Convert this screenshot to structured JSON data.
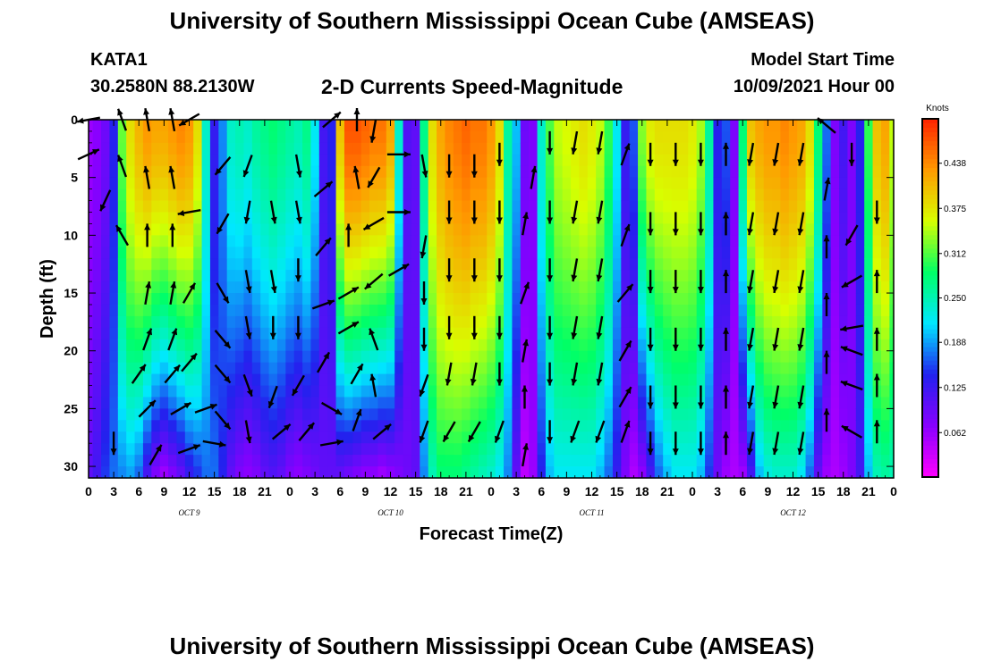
{
  "header": {
    "title_top": "University of Southern Mississippi Ocean Cube (AMSEAS)",
    "station": "KATA1",
    "coords": "30.2580N  88.2130W",
    "plot_title": "2-D Currents Speed-Magnitude",
    "model_start_label": "Model Start Time",
    "model_start_value": "10/09/2021 Hour 00"
  },
  "footer": {
    "title_bottom": "University of Southern Mississippi Ocean Cube (AMSEAS)"
  },
  "chart_data": {
    "type": "heatmap",
    "title": "2-D Currents Speed-Magnitude",
    "xlabel": "Forecast Time(Z)",
    "ylabel": "Depth (ft)",
    "xlim": [
      0,
      96
    ],
    "ylim": [
      31,
      0
    ],
    "x_tick_values": [
      0,
      3,
      6,
      9,
      12,
      15,
      18,
      21,
      24,
      27,
      30,
      33,
      36,
      39,
      42,
      45,
      48,
      51,
      54,
      57,
      60,
      63,
      66,
      69,
      72,
      75,
      78,
      81,
      84,
      87,
      90,
      93,
      96
    ],
    "x_tick_labels": [
      "0",
      "3",
      "6",
      "9",
      "12",
      "15",
      "18",
      "21",
      "0",
      "3",
      "6",
      "9",
      "12",
      "15",
      "18",
      "21",
      "0",
      "3",
      "6",
      "9",
      "12",
      "15",
      "18",
      "21",
      "0",
      "3",
      "6",
      "9",
      "12",
      "15",
      "18",
      "21",
      "0"
    ],
    "date_labels": [
      {
        "hour": 12,
        "text": "OCT 9"
      },
      {
        "hour": 36,
        "text": "OCT 10"
      },
      {
        "hour": 60,
        "text": "OCT 11"
      },
      {
        "hour": 84,
        "text": "OCT 12"
      }
    ],
    "y_ticks": [
      0,
      5,
      10,
      15,
      20,
      25,
      30
    ],
    "colorbar": {
      "label": "Knots",
      "range": [
        0,
        0.5
      ],
      "ticks": [
        0.062,
        0.125,
        0.188,
        0.25,
        0.312,
        0.375,
        0.438
      ],
      "tick_labels": [
        "0.062",
        "0.125",
        "0.188",
        "0.250",
        "0.312",
        "0.375",
        "0.438"
      ],
      "colors": [
        "#ff00ff",
        "#8800ff",
        "#2222ee",
        "#00e8ff",
        "#00ff66",
        "#d8ff00",
        "#ff9a00",
        "#ff2200"
      ]
    },
    "column_hours": [
      0,
      1,
      2,
      3,
      4,
      5,
      6,
      7,
      8,
      9,
      10,
      11,
      12,
      13,
      14,
      15,
      16,
      17,
      18,
      19,
      20,
      21,
      22,
      23,
      24,
      25,
      26,
      27,
      28,
      29,
      30,
      31,
      32,
      33,
      34,
      35,
      36,
      37,
      38,
      39,
      40,
      41,
      42,
      43,
      44,
      45,
      46,
      47,
      48,
      49,
      50,
      51,
      52,
      53,
      54,
      55,
      56,
      57,
      58,
      59,
      60,
      61,
      62,
      63,
      64,
      65,
      66,
      67,
      68,
      69,
      70,
      71,
      72,
      73,
      74,
      75,
      76,
      77,
      78,
      79,
      80,
      81,
      82,
      83,
      84,
      85,
      86,
      87,
      88,
      89,
      90,
      91,
      92,
      93,
      94,
      95,
      96
    ],
    "surface_speed": [
      0.06,
      0.07,
      0.09,
      0.14,
      0.32,
      0.38,
      0.41,
      0.43,
      0.42,
      0.42,
      0.43,
      0.44,
      0.43,
      0.38,
      0.24,
      0.13,
      0.18,
      0.24,
      0.25,
      0.24,
      0.26,
      0.27,
      0.28,
      0.27,
      0.26,
      0.25,
      0.27,
      0.22,
      0.12,
      0.14,
      0.4,
      0.47,
      0.47,
      0.46,
      0.45,
      0.45,
      0.42,
      0.24,
      0.11,
      0.1,
      0.27,
      0.38,
      0.42,
      0.44,
      0.45,
      0.46,
      0.45,
      0.45,
      0.43,
      0.38,
      0.26,
      0.2,
      0.09,
      0.08,
      0.24,
      0.31,
      0.35,
      0.36,
      0.37,
      0.38,
      0.37,
      0.35,
      0.3,
      0.22,
      0.13,
      0.16,
      0.33,
      0.37,
      0.38,
      0.38,
      0.38,
      0.38,
      0.37,
      0.34,
      0.26,
      0.14,
      0.16,
      0.08,
      0.28,
      0.4,
      0.42,
      0.43,
      0.43,
      0.44,
      0.43,
      0.42,
      0.38,
      0.28,
      0.17,
      0.08,
      0.12,
      0.08,
      0.14,
      0.3,
      0.4,
      0.42,
      0.35
    ],
    "near_bottom_speed": [
      0.1,
      0.12,
      0.15,
      0.17,
      0.18,
      0.19,
      0.17,
      0.12,
      0.08,
      0.06,
      0.08,
      0.1,
      0.13,
      0.15,
      0.17,
      0.17,
      0.14,
      0.1,
      0.08,
      0.07,
      0.08,
      0.1,
      0.11,
      0.1,
      0.08,
      0.07,
      0.08,
      0.09,
      0.1,
      0.1,
      0.1,
      0.09,
      0.08,
      0.07,
      0.07,
      0.06,
      0.07,
      0.08,
      0.09,
      0.1,
      0.18,
      0.25,
      0.28,
      0.28,
      0.28,
      0.27,
      0.26,
      0.25,
      0.24,
      0.22,
      0.18,
      0.1,
      0.04,
      0.06,
      0.14,
      0.2,
      0.22,
      0.22,
      0.22,
      0.22,
      0.22,
      0.2,
      0.17,
      0.13,
      0.08,
      0.05,
      0.07,
      0.12,
      0.17,
      0.2,
      0.22,
      0.22,
      0.22,
      0.2,
      0.15,
      0.09,
      0.06,
      0.05,
      0.06,
      0.12,
      0.2,
      0.23,
      0.24,
      0.24,
      0.24,
      0.22,
      0.17,
      0.1,
      0.06,
      0.05,
      0.06,
      0.08,
      0.12,
      0.2,
      0.25,
      0.26,
      0.25
    ],
    "vectors": [
      {
        "t": 0,
        "d": 0.0,
        "ang": -170
      },
      {
        "t": 0,
        "d": 3.0,
        "ang": 25
      },
      {
        "t": 2,
        "d": 7.0,
        "ang": -115
      },
      {
        "t": 3,
        "d": 28.0,
        "ang": -90
      },
      {
        "t": 4,
        "d": 0.0,
        "ang": 110
      },
      {
        "t": 4,
        "d": 4.0,
        "ang": 110
      },
      {
        "t": 4,
        "d": 10.0,
        "ang": 120
      },
      {
        "t": 6,
        "d": 22.0,
        "ang": 55
      },
      {
        "t": 7,
        "d": 25.0,
        "ang": 45
      },
      {
        "t": 8,
        "d": 29.0,
        "ang": 60
      },
      {
        "t": 7,
        "d": 0.0,
        "ang": 100
      },
      {
        "t": 7,
        "d": 5.0,
        "ang": 100
      },
      {
        "t": 7,
        "d": 10.0,
        "ang": 90
      },
      {
        "t": 7,
        "d": 15.0,
        "ang": 80
      },
      {
        "t": 7,
        "d": 19.0,
        "ang": 70
      },
      {
        "t": 10,
        "d": 0.0,
        "ang": 100
      },
      {
        "t": 10,
        "d": 5.0,
        "ang": 100
      },
      {
        "t": 10,
        "d": 10.0,
        "ang": 90
      },
      {
        "t": 10,
        "d": 15.0,
        "ang": 80
      },
      {
        "t": 10,
        "d": 19.0,
        "ang": 70
      },
      {
        "t": 10,
        "d": 22.0,
        "ang": 50
      },
      {
        "t": 11,
        "d": 25.0,
        "ang": 30
      },
      {
        "t": 12,
        "d": 28.5,
        "ang": 20
      },
      {
        "t": 12,
        "d": 0.0,
        "ang": -150
      },
      {
        "t": 12,
        "d": 8.0,
        "ang": -170
      },
      {
        "t": 12,
        "d": 15.0,
        "ang": 60
      },
      {
        "t": 12,
        "d": 21.0,
        "ang": 50
      },
      {
        "t": 14,
        "d": 25.0,
        "ang": 20
      },
      {
        "t": 15,
        "d": 28.0,
        "ang": -10
      },
      {
        "t": 16,
        "d": 4.0,
        "ang": -130
      },
      {
        "t": 16,
        "d": 9.0,
        "ang": -120
      },
      {
        "t": 16,
        "d": 15.0,
        "ang": -60
      },
      {
        "t": 16,
        "d": 19.0,
        "ang": -50
      },
      {
        "t": 16,
        "d": 22.0,
        "ang": -50
      },
      {
        "t": 16,
        "d": 26.0,
        "ang": -50
      },
      {
        "t": 19,
        "d": 4.0,
        "ang": -110
      },
      {
        "t": 19,
        "d": 8.0,
        "ang": -100
      },
      {
        "t": 19,
        "d": 14.0,
        "ang": -80
      },
      {
        "t": 19,
        "d": 18.0,
        "ang": -80
      },
      {
        "t": 19,
        "d": 23.0,
        "ang": -70
      },
      {
        "t": 19,
        "d": 27.0,
        "ang": -80
      },
      {
        "t": 22,
        "d": 8.0,
        "ang": -80
      },
      {
        "t": 22,
        "d": 14.0,
        "ang": -80
      },
      {
        "t": 22,
        "d": 18.0,
        "ang": -90
      },
      {
        "t": 22,
        "d": 24.0,
        "ang": -110
      },
      {
        "t": 23,
        "d": 27.0,
        "ang": 40
      },
      {
        "t": 25,
        "d": 4.0,
        "ang": -80
      },
      {
        "t": 25,
        "d": 8.0,
        "ang": -80
      },
      {
        "t": 25,
        "d": 13.0,
        "ang": -90
      },
      {
        "t": 25,
        "d": 18.0,
        "ang": -90
      },
      {
        "t": 25,
        "d": 23.0,
        "ang": -120
      },
      {
        "t": 26,
        "d": 27.0,
        "ang": 50
      },
      {
        "t": 29,
        "d": 0.0,
        "ang": 40
      },
      {
        "t": 28,
        "d": 6.0,
        "ang": 40
      },
      {
        "t": 28,
        "d": 11.0,
        "ang": 50
      },
      {
        "t": 28,
        "d": 16.0,
        "ang": 20
      },
      {
        "t": 28,
        "d": 21.0,
        "ang": 60
      },
      {
        "t": 29,
        "d": 25.0,
        "ang": -30
      },
      {
        "t": 29,
        "d": 28.0,
        "ang": 10
      },
      {
        "t": 32,
        "d": 0.0,
        "ang": 90
      },
      {
        "t": 32,
        "d": 5.0,
        "ang": 100
      },
      {
        "t": 31,
        "d": 10.0,
        "ang": 90
      },
      {
        "t": 31,
        "d": 15.0,
        "ang": 30
      },
      {
        "t": 31,
        "d": 18.0,
        "ang": 30
      },
      {
        "t": 32,
        "d": 22.0,
        "ang": 60
      },
      {
        "t": 32,
        "d": 26.0,
        "ang": 70
      },
      {
        "t": 34,
        "d": 1.0,
        "ang": -100
      },
      {
        "t": 34,
        "d": 5.0,
        "ang": -120
      },
      {
        "t": 34,
        "d": 9.0,
        "ang": -150
      },
      {
        "t": 34,
        "d": 14.0,
        "ang": -140
      },
      {
        "t": 34,
        "d": 19.0,
        "ang": 110
      },
      {
        "t": 34,
        "d": 23.0,
        "ang": 100
      },
      {
        "t": 35,
        "d": 27.0,
        "ang": 40
      },
      {
        "t": 37,
        "d": 3.0,
        "ang": 0
      },
      {
        "t": 37,
        "d": 8.0,
        "ang": 0
      },
      {
        "t": 37,
        "d": 13.0,
        "ang": 30
      },
      {
        "t": 40,
        "d": 4.0,
        "ang": -80
      },
      {
        "t": 40,
        "d": 11.0,
        "ang": -100
      },
      {
        "t": 40,
        "d": 15.0,
        "ang": -90
      },
      {
        "t": 40,
        "d": 19.0,
        "ang": -90
      },
      {
        "t": 40,
        "d": 23.0,
        "ang": -110
      },
      {
        "t": 40,
        "d": 27.0,
        "ang": -110
      },
      {
        "t": 43,
        "d": 4.0,
        "ang": -90
      },
      {
        "t": 43,
        "d": 8.0,
        "ang": -90
      },
      {
        "t": 43,
        "d": 13.0,
        "ang": -90
      },
      {
        "t": 43,
        "d": 18.0,
        "ang": -90
      },
      {
        "t": 43,
        "d": 22.0,
        "ang": -100
      },
      {
        "t": 43,
        "d": 27.0,
        "ang": -120
      },
      {
        "t": 46,
        "d": 4.0,
        "ang": -90
      },
      {
        "t": 46,
        "d": 8.0,
        "ang": -90
      },
      {
        "t": 46,
        "d": 13.0,
        "ang": -90
      },
      {
        "t": 46,
        "d": 18.0,
        "ang": -90
      },
      {
        "t": 46,
        "d": 22.0,
        "ang": -100
      },
      {
        "t": 46,
        "d": 27.0,
        "ang": -120
      },
      {
        "t": 49,
        "d": 3.0,
        "ang": -90
      },
      {
        "t": 49,
        "d": 8.0,
        "ang": -90
      },
      {
        "t": 49,
        "d": 13.0,
        "ang": -90
      },
      {
        "t": 49,
        "d": 18.0,
        "ang": -90
      },
      {
        "t": 49,
        "d": 22.0,
        "ang": -90
      },
      {
        "t": 49,
        "d": 27.0,
        "ang": -110
      },
      {
        "t": 53,
        "d": 5.0,
        "ang": 80
      },
      {
        "t": 52,
        "d": 9.0,
        "ang": 80
      },
      {
        "t": 52,
        "d": 15.0,
        "ang": 70
      },
      {
        "t": 52,
        "d": 20.0,
        "ang": 80
      },
      {
        "t": 52,
        "d": 24.0,
        "ang": 90
      },
      {
        "t": 52,
        "d": 29.0,
        "ang": 80
      },
      {
        "t": 55,
        "d": 2.0,
        "ang": -90
      },
      {
        "t": 55,
        "d": 8.0,
        "ang": -90
      },
      {
        "t": 55,
        "d": 13.0,
        "ang": -90
      },
      {
        "t": 55,
        "d": 18.0,
        "ang": -90
      },
      {
        "t": 55,
        "d": 22.0,
        "ang": -90
      },
      {
        "t": 55,
        "d": 27.0,
        "ang": -90
      },
      {
        "t": 58,
        "d": 2.0,
        "ang": -100
      },
      {
        "t": 58,
        "d": 8.0,
        "ang": -100
      },
      {
        "t": 58,
        "d": 13.0,
        "ang": -100
      },
      {
        "t": 58,
        "d": 18.0,
        "ang": -100
      },
      {
        "t": 58,
        "d": 22.0,
        "ang": -100
      },
      {
        "t": 58,
        "d": 27.0,
        "ang": -110
      },
      {
        "t": 61,
        "d": 2.0,
        "ang": -100
      },
      {
        "t": 61,
        "d": 8.0,
        "ang": -100
      },
      {
        "t": 61,
        "d": 13.0,
        "ang": -100
      },
      {
        "t": 61,
        "d": 18.0,
        "ang": -100
      },
      {
        "t": 61,
        "d": 22.0,
        "ang": -100
      },
      {
        "t": 61,
        "d": 27.0,
        "ang": -110
      },
      {
        "t": 64,
        "d": 3.0,
        "ang": 70
      },
      {
        "t": 64,
        "d": 10.0,
        "ang": 70
      },
      {
        "t": 64,
        "d": 15.0,
        "ang": 50
      },
      {
        "t": 64,
        "d": 20.0,
        "ang": 60
      },
      {
        "t": 64,
        "d": 24.0,
        "ang": 60
      },
      {
        "t": 64,
        "d": 27.0,
        "ang": 70
      },
      {
        "t": 67,
        "d": 3.0,
        "ang": -90
      },
      {
        "t": 67,
        "d": 9.0,
        "ang": -90
      },
      {
        "t": 67,
        "d": 14.0,
        "ang": -90
      },
      {
        "t": 67,
        "d": 19.0,
        "ang": -90
      },
      {
        "t": 67,
        "d": 24.0,
        "ang": -90
      },
      {
        "t": 67,
        "d": 28.0,
        "ang": -90
      },
      {
        "t": 70,
        "d": 3.0,
        "ang": -90
      },
      {
        "t": 70,
        "d": 9.0,
        "ang": -90
      },
      {
        "t": 70,
        "d": 14.0,
        "ang": -90
      },
      {
        "t": 70,
        "d": 19.0,
        "ang": -90
      },
      {
        "t": 70,
        "d": 24.0,
        "ang": -90
      },
      {
        "t": 70,
        "d": 28.0,
        "ang": -90
      },
      {
        "t": 73,
        "d": 3.0,
        "ang": -90
      },
      {
        "t": 73,
        "d": 9.0,
        "ang": -90
      },
      {
        "t": 73,
        "d": 14.0,
        "ang": -90
      },
      {
        "t": 73,
        "d": 19.0,
        "ang": -90
      },
      {
        "t": 73,
        "d": 24.0,
        "ang": -90
      },
      {
        "t": 73,
        "d": 28.0,
        "ang": -90
      },
      {
        "t": 76,
        "d": 3.0,
        "ang": 90
      },
      {
        "t": 76,
        "d": 9.0,
        "ang": 90
      },
      {
        "t": 76,
        "d": 14.0,
        "ang": 90
      },
      {
        "t": 76,
        "d": 19.0,
        "ang": 90
      },
      {
        "t": 76,
        "d": 24.0,
        "ang": 90
      },
      {
        "t": 76,
        "d": 28.0,
        "ang": 90
      },
      {
        "t": 79,
        "d": 3.0,
        "ang": -100
      },
      {
        "t": 79,
        "d": 9.0,
        "ang": -100
      },
      {
        "t": 79,
        "d": 14.0,
        "ang": -100
      },
      {
        "t": 79,
        "d": 19.0,
        "ang": -100
      },
      {
        "t": 79,
        "d": 24.0,
        "ang": -100
      },
      {
        "t": 79,
        "d": 28.0,
        "ang": -100
      },
      {
        "t": 82,
        "d": 3.0,
        "ang": -100
      },
      {
        "t": 82,
        "d": 9.0,
        "ang": -100
      },
      {
        "t": 82,
        "d": 14.0,
        "ang": -100
      },
      {
        "t": 82,
        "d": 19.0,
        "ang": -100
      },
      {
        "t": 82,
        "d": 24.0,
        "ang": -100
      },
      {
        "t": 82,
        "d": 28.0,
        "ang": -100
      },
      {
        "t": 85,
        "d": 3.0,
        "ang": -100
      },
      {
        "t": 85,
        "d": 9.0,
        "ang": -100
      },
      {
        "t": 85,
        "d": 14.0,
        "ang": -100
      },
      {
        "t": 85,
        "d": 19.0,
        "ang": -100
      },
      {
        "t": 85,
        "d": 24.0,
        "ang": -100
      },
      {
        "t": 85,
        "d": 28.0,
        "ang": -100
      },
      {
        "t": 88,
        "d": 0.5,
        "ang": 140
      },
      {
        "t": 88,
        "d": 6.0,
        "ang": 80
      },
      {
        "t": 88,
        "d": 11.0,
        "ang": 90
      },
      {
        "t": 88,
        "d": 16.0,
        "ang": 90
      },
      {
        "t": 88,
        "d": 21.0,
        "ang": 90
      },
      {
        "t": 88,
        "d": 26.0,
        "ang": 90
      },
      {
        "t": 91,
        "d": 3.0,
        "ang": -90
      },
      {
        "t": 91,
        "d": 10.0,
        "ang": -120
      },
      {
        "t": 91,
        "d": 14.0,
        "ang": -150
      },
      {
        "t": 91,
        "d": 18.0,
        "ang": -170
      },
      {
        "t": 91,
        "d": 20.0,
        "ang": 160
      },
      {
        "t": 91,
        "d": 23.0,
        "ang": 160
      },
      {
        "t": 91,
        "d": 27.0,
        "ang": 150
      },
      {
        "t": 94,
        "d": 8.0,
        "ang": -90
      },
      {
        "t": 94,
        "d": 14.0,
        "ang": 90
      },
      {
        "t": 94,
        "d": 19.0,
        "ang": 90
      },
      {
        "t": 94,
        "d": 23.0,
        "ang": 90
      },
      {
        "t": 94,
        "d": 27.0,
        "ang": 90
      }
    ]
  }
}
